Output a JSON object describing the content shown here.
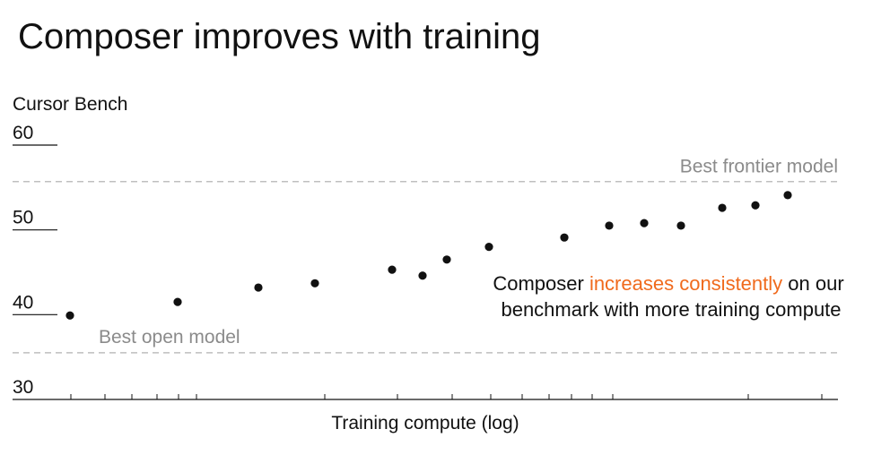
{
  "chart_data": {
    "type": "scatter",
    "title": "Composer improves with training",
    "ylabel": "Cursor Bench",
    "xlabel": "Training compute (log)",
    "ylim": [
      30,
      60
    ],
    "yticks": [
      "60",
      "50",
      "40",
      "30"
    ],
    "x_scale": "log",
    "grid": false,
    "reference_lines": [
      {
        "label": "Best frontier model",
        "value": 55.7
      },
      {
        "label": "Best open model",
        "value": 35.5
      }
    ],
    "annotation": {
      "prefix": "Composer ",
      "highlight": "increases consistently",
      "suffix_line1": " on our",
      "line2": "benchmark with more training compute"
    },
    "colors": {
      "highlight": "#f06a1d",
      "reference": "#bfbfbf",
      "points": "#111111"
    },
    "series": [
      {
        "values": [
          [
            1,
            39.9
          ],
          [
            2,
            41.5
          ],
          [
            3,
            43.2
          ],
          [
            4,
            43.7
          ],
          [
            5,
            45.3
          ],
          [
            6,
            44.6
          ],
          [
            7,
            46.5
          ],
          [
            8,
            48.0
          ],
          [
            9,
            49.1
          ],
          [
            10,
            50.5
          ],
          [
            11,
            50.8
          ],
          [
            12,
            50.5
          ],
          [
            13,
            52.6
          ],
          [
            14,
            52.9
          ],
          [
            15,
            54.1
          ]
        ]
      }
    ]
  }
}
